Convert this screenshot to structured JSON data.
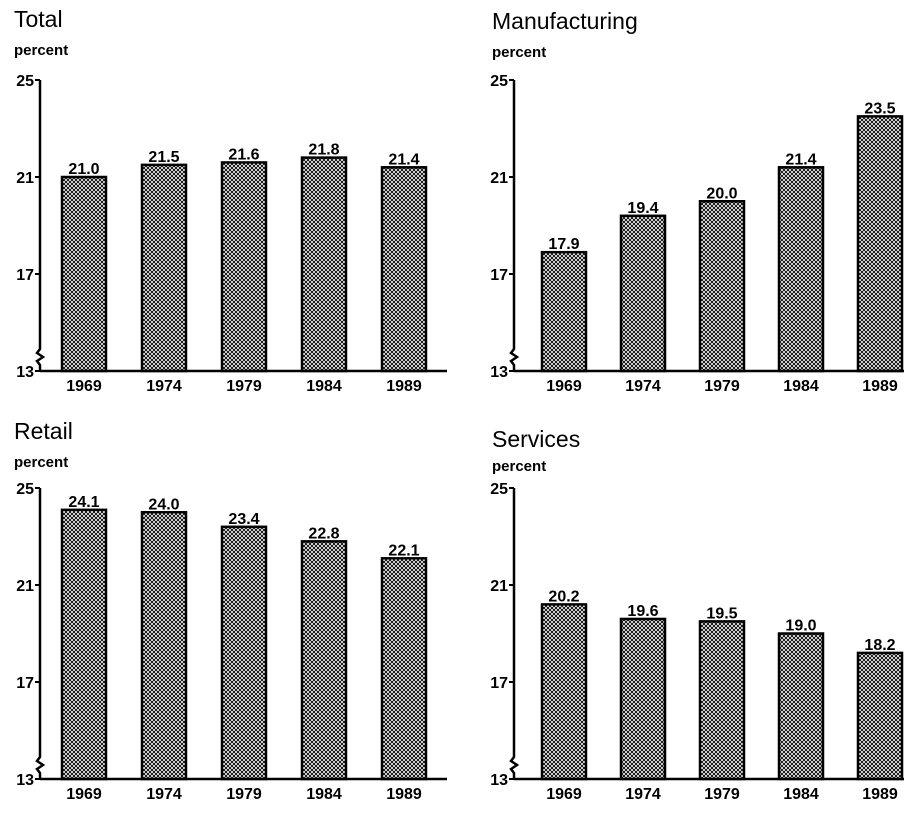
{
  "chart_data": [
    {
      "type": "bar",
      "title": "Total",
      "ylabel": "percent",
      "categories": [
        "1969",
        "1974",
        "1979",
        "1984",
        "1989"
      ],
      "values": [
        21.0,
        21.5,
        21.6,
        21.8,
        21.4
      ],
      "value_labels": [
        "21.0",
        "21.5",
        "21.6",
        "21.8",
        "21.4"
      ],
      "ylim": [
        13,
        25
      ],
      "yticks": [
        "13",
        "17",
        "21",
        "25"
      ],
      "axis_break": true,
      "grid": false,
      "bar_fill": "crosshatch"
    },
    {
      "type": "bar",
      "title": "Manufacturing",
      "ylabel": "percent",
      "categories": [
        "1969",
        "1974",
        "1979",
        "1984",
        "1989"
      ],
      "values": [
        17.9,
        19.4,
        20.0,
        21.4,
        23.5
      ],
      "value_labels": [
        "17.9",
        "19.4",
        "20.0",
        "21.4",
        "23.5"
      ],
      "ylim": [
        13,
        25
      ],
      "yticks": [
        "13",
        "17",
        "21",
        "25"
      ],
      "axis_break": true,
      "grid": false,
      "bar_fill": "crosshatch"
    },
    {
      "type": "bar",
      "title": "Retail",
      "ylabel": "percent",
      "categories": [
        "1969",
        "1974",
        "1979",
        "1984",
        "1989"
      ],
      "values": [
        24.1,
        24.0,
        23.4,
        22.8,
        22.1
      ],
      "value_labels": [
        "24.1",
        "24.0",
        "23.4",
        "22.8",
        "22.1"
      ],
      "ylim": [
        13,
        25
      ],
      "yticks": [
        "13",
        "17",
        "21",
        "25"
      ],
      "axis_break": true,
      "grid": false,
      "bar_fill": "crosshatch"
    },
    {
      "type": "bar",
      "title": "Services",
      "ylabel": "percent",
      "categories": [
        "1969",
        "1974",
        "1979",
        "1984",
        "1989"
      ],
      "values": [
        20.2,
        19.6,
        19.5,
        19.0,
        18.2
      ],
      "value_labels": [
        "20.2",
        "19.6",
        "19.5",
        "19.0",
        "18.2"
      ],
      "ylim": [
        13,
        25
      ],
      "yticks": [
        "13",
        "17",
        "21",
        "25"
      ],
      "axis_break": true,
      "grid": false,
      "bar_fill": "crosshatch"
    }
  ],
  "colors": {
    "bar_outline": "#000000",
    "hatch_line": "#000000",
    "hatch_background": "#ffffff"
  }
}
